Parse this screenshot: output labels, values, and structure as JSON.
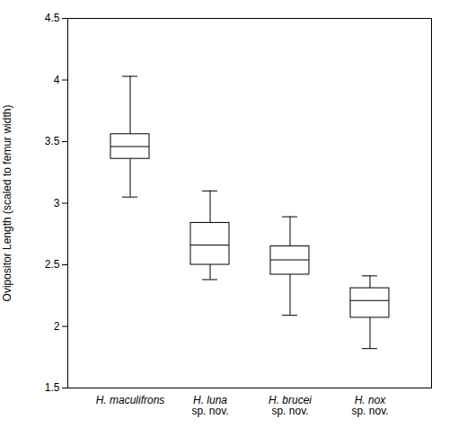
{
  "chart_data": {
    "type": "box",
    "y_label": "Ovipositor Length (scaled to femur width)",
    "categories": [
      "H. maculifrons",
      "H. luna\nsp. nov.",
      "H. brucei\nsp. nov.",
      "H. nox\nsp. nov."
    ],
    "stats": {
      "min": [
        3.05,
        2.38,
        2.09,
        1.82
      ],
      "q1": [
        3.36,
        2.5,
        2.42,
        2.07
      ],
      "median": [
        3.46,
        2.66,
        2.54,
        2.21
      ],
      "q3": [
        3.56,
        2.84,
        2.65,
        2.31
      ],
      "max": [
        4.03,
        3.1,
        2.89,
        2.41
      ]
    },
    "color": "#000000",
    "ylim": [
      1.5,
      4.5
    ],
    "yticks": [
      1.5,
      2,
      2.5,
      3,
      3.5,
      4,
      4.5
    ],
    "grid": false
  }
}
